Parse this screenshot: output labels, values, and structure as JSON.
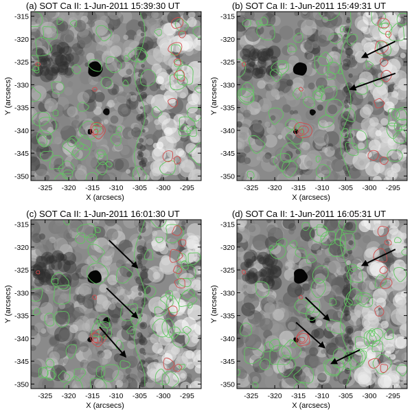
{
  "figure": {
    "panels": [
      {
        "id": "a",
        "title": "(a) SOT Ca II:  1-Jun-2011 15:39:30 UT",
        "xlabel": "X (arcsecs)",
        "ylabel": "Y (arcsecs)",
        "arrows": []
      },
      {
        "id": "b",
        "title": "(b) SOT Ca II:  1-Jun-2011 15:49:31 UT",
        "xlabel": "X (arcsecs)",
        "ylabel": "Y (arcsecs)",
        "arrows": [
          {
            "from": [
              -294.5,
              -320.5
            ],
            "to": [
              -301.5,
              -324.0
            ]
          },
          {
            "from": [
              -294.5,
              -327.5
            ],
            "to": [
              -304.0,
              -331.0
            ]
          }
        ]
      },
      {
        "id": "c",
        "title": "(c) SOT Ca II:  1-Jun-2011 16:01:30 UT",
        "xlabel": "X (arcsecs)",
        "ylabel": "Y (arcsecs)",
        "arrows": [
          {
            "from": [
              -311.5,
              -318.5
            ],
            "to": [
              -305.5,
              -324.5
            ]
          },
          {
            "from": [
              -312.0,
              -329.0
            ],
            "to": [
              -305.5,
              -335.5
            ]
          },
          {
            "from": [
              -313.5,
              -337.5
            ],
            "to": [
              -308.0,
              -344.0
            ]
          }
        ]
      },
      {
        "id": "d",
        "title": "(d) SOT Ca II:  1-Jun-2011 16:05:31 UT",
        "xlabel": "X (arcsecs)",
        "ylabel": "Y (arcsecs)",
        "arrows": [
          {
            "from": [
              -294.5,
              -320.5
            ],
            "to": [
              -301.5,
              -324.0
            ]
          },
          {
            "from": [
              -313.5,
              -331.0
            ],
            "to": [
              -308.5,
              -336.0
            ]
          },
          {
            "from": [
              -315.5,
              -336.5
            ],
            "to": [
              -309.5,
              -342.0
            ]
          },
          {
            "from": [
              -302.0,
              -342.5
            ],
            "to": [
              -308.0,
              -345.5
            ]
          }
        ]
      }
    ],
    "xaxis": {
      "range": [
        -328,
        -292
      ],
      "ticks": [
        -325,
        -320,
        -315,
        -310,
        -305,
        -300,
        -295
      ]
    },
    "yaxis": {
      "range": [
        -351,
        -314
      ],
      "ticks": [
        -315,
        -320,
        -325,
        -330,
        -335,
        -340,
        -345,
        -350
      ]
    },
    "colors": {
      "contour_positive": "#d24a4a",
      "contour_negative": "#5fc85f",
      "arrow": "#000000",
      "frame": "#000000"
    }
  }
}
